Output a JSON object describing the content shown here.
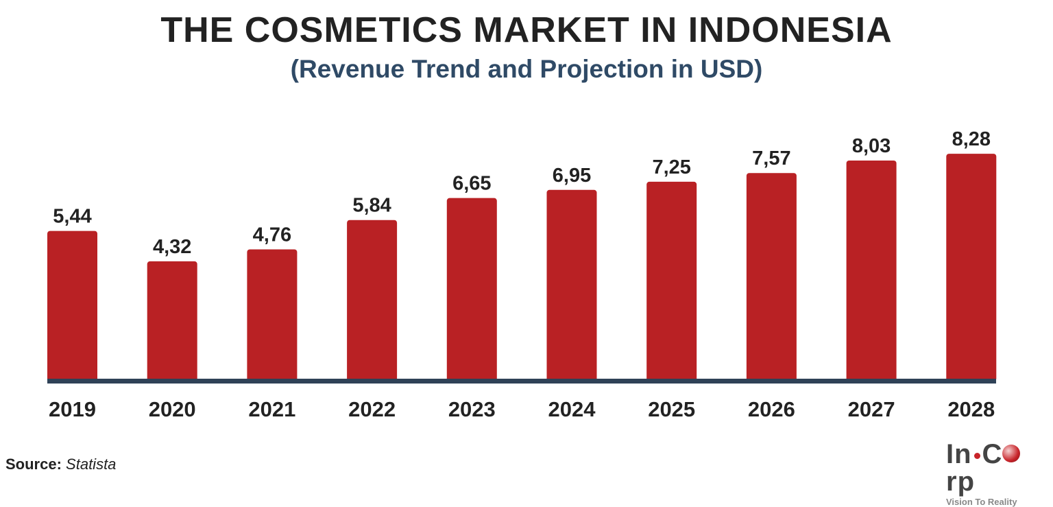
{
  "chart_data": {
    "type": "bar",
    "title": "THE COSMETICS MARKET IN INDONESIA",
    "subtitle": "(Revenue Trend and Projection in USD)",
    "categories": [
      "2019",
      "2020",
      "2021",
      "2022",
      "2023",
      "2024",
      "2025",
      "2026",
      "2027",
      "2028"
    ],
    "values": [
      5.44,
      4.32,
      4.76,
      5.84,
      6.65,
      6.95,
      7.25,
      7.57,
      8.03,
      8.28
    ],
    "data_labels": [
      "5,44",
      "4,32",
      "4,76",
      "5,84",
      "6,65",
      "6,95",
      "7,25",
      "7,57",
      "8,03",
      "8,28"
    ],
    "xlabel": "",
    "ylabel": "",
    "ylim": [
      0,
      8.28
    ],
    "grid": false,
    "legend": "none",
    "colors": {
      "bar": "#b92124",
      "axis": "#2f4257",
      "subtitle": "#2f4a66"
    }
  },
  "source": {
    "label": "Source:",
    "value": "Statista"
  },
  "logo": {
    "text_left": "In",
    "text_right": "rp",
    "text_c": "C",
    "tagline": "Vision To Reality"
  }
}
